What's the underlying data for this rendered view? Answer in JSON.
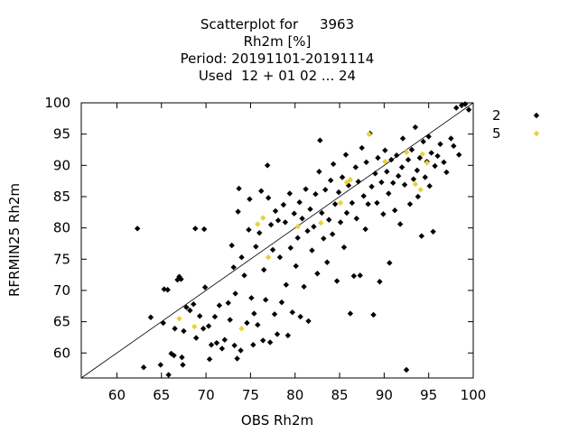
{
  "chart_data": {
    "type": "scatter",
    "title_lines": [
      "Scatterplot for     3963",
      "Rh2m [%]",
      "Period: 20191101-20191114",
      "Used  12 + 01 02 ... 24"
    ],
    "xlabel": "OBS Rh2m",
    "ylabel": "RFRMIN25 Rh2m",
    "xlim": [
      56,
      100
    ],
    "ylim": [
      56,
      100
    ],
    "xticks": [
      "60",
      "65",
      "70",
      "75",
      "80",
      "85",
      "90",
      "95",
      "100"
    ],
    "yticks": [
      "60",
      "65",
      "70",
      "75",
      "80",
      "85",
      "90",
      "95",
      "100"
    ],
    "diagonal": true,
    "grid": false,
    "legend_position": "right",
    "series": [
      {
        "name": "2",
        "color": "#000000",
        "marker": "diamond",
        "points": [
          [
            62.3,
            79.9
          ],
          [
            63.0,
            57.7
          ],
          [
            63.8,
            65.7
          ],
          [
            64.9,
            58.1
          ],
          [
            65.2,
            64.8
          ],
          [
            65.3,
            70.2
          ],
          [
            65.7,
            70.1
          ],
          [
            65.8,
            56.5
          ],
          [
            66.1,
            59.9
          ],
          [
            66.4,
            59.6
          ],
          [
            66.5,
            63.9
          ],
          [
            66.8,
            71.7
          ],
          [
            67.0,
            72.2
          ],
          [
            67.2,
            71.8
          ],
          [
            67.3,
            59.3
          ],
          [
            67.4,
            58.1
          ],
          [
            67.5,
            63.5
          ],
          [
            67.8,
            67.3
          ],
          [
            68.2,
            66.8
          ],
          [
            68.6,
            67.8
          ],
          [
            68.8,
            79.9
          ],
          [
            68.9,
            62.4
          ],
          [
            69.3,
            65.9
          ],
          [
            69.7,
            63.9
          ],
          [
            69.8,
            79.8
          ],
          [
            69.9,
            70.5
          ],
          [
            70.3,
            64.3
          ],
          [
            70.4,
            59.0
          ],
          [
            70.6,
            61.3
          ],
          [
            71.0,
            65.8
          ],
          [
            71.2,
            61.6
          ],
          [
            71.5,
            67.6
          ],
          [
            71.8,
            60.7
          ],
          [
            72.1,
            62.1
          ],
          [
            72.5,
            68.0
          ],
          [
            72.7,
            65.3
          ],
          [
            72.9,
            77.2
          ],
          [
            73.1,
            73.7
          ],
          [
            73.2,
            61.2
          ],
          [
            73.3,
            69.5
          ],
          [
            73.5,
            59.1
          ],
          [
            73.6,
            82.6
          ],
          [
            73.7,
            86.3
          ],
          [
            73.9,
            60.4
          ],
          [
            74.0,
            75.3
          ],
          [
            74.3,
            72.4
          ],
          [
            74.6,
            64.8
          ],
          [
            74.8,
            79.7
          ],
          [
            74.9,
            84.6
          ],
          [
            75.1,
            68.8
          ],
          [
            75.3,
            61.3
          ],
          [
            75.4,
            66.3
          ],
          [
            75.6,
            77.0
          ],
          [
            75.8,
            64.5
          ],
          [
            76.0,
            79.2
          ],
          [
            76.2,
            85.9
          ],
          [
            76.4,
            62.0
          ],
          [
            76.5,
            73.3
          ],
          [
            76.7,
            68.5
          ],
          [
            76.9,
            90.0
          ],
          [
            77.0,
            84.8
          ],
          [
            77.2,
            61.7
          ],
          [
            77.3,
            80.5
          ],
          [
            77.5,
            76.5
          ],
          [
            77.7,
            66.2
          ],
          [
            77.8,
            82.7
          ],
          [
            78.0,
            63.0
          ],
          [
            78.1,
            81.2
          ],
          [
            78.3,
            75.3
          ],
          [
            78.5,
            68.1
          ],
          [
            78.7,
            83.7
          ],
          [
            78.9,
            80.9
          ],
          [
            79.0,
            70.9
          ],
          [
            79.2,
            62.8
          ],
          [
            79.4,
            85.5
          ],
          [
            79.5,
            76.8
          ],
          [
            79.7,
            66.5
          ],
          [
            79.9,
            82.3
          ],
          [
            80.1,
            73.9
          ],
          [
            80.3,
            78.4
          ],
          [
            80.5,
            84.1
          ],
          [
            80.6,
            65.8
          ],
          [
            80.8,
            81.5
          ],
          [
            81.0,
            70.6
          ],
          [
            81.2,
            86.2
          ],
          [
            81.4,
            79.5
          ],
          [
            81.5,
            65.1
          ],
          [
            81.7,
            83.0
          ],
          [
            81.9,
            76.4
          ],
          [
            82.1,
            80.2
          ],
          [
            82.3,
            85.4
          ],
          [
            82.5,
            72.7
          ],
          [
            82.7,
            89.0
          ],
          [
            82.8,
            94.0
          ],
          [
            83.0,
            82.4
          ],
          [
            83.2,
            78.3
          ],
          [
            83.4,
            86.1
          ],
          [
            83.6,
            74.5
          ],
          [
            83.8,
            81.3
          ],
          [
            84.0,
            87.6
          ],
          [
            84.2,
            79.0
          ],
          [
            84.3,
            90.2
          ],
          [
            84.5,
            83.8
          ],
          [
            84.7,
            71.5
          ],
          [
            84.9,
            85.7
          ],
          [
            85.1,
            80.9
          ],
          [
            85.3,
            88.1
          ],
          [
            85.5,
            76.9
          ],
          [
            85.7,
            91.7
          ],
          [
            85.8,
            82.4
          ],
          [
            86.0,
            86.8
          ],
          [
            86.2,
            66.3
          ],
          [
            86.4,
            84.0
          ],
          [
            86.6,
            72.3
          ],
          [
            86.8,
            89.7
          ],
          [
            86.9,
            81.5
          ],
          [
            87.1,
            87.4
          ],
          [
            87.3,
            72.4
          ],
          [
            87.5,
            92.8
          ],
          [
            87.7,
            85.1
          ],
          [
            87.9,
            79.8
          ],
          [
            88.0,
            90.5
          ],
          [
            88.2,
            83.8
          ],
          [
            88.4,
            95.1
          ],
          [
            88.6,
            86.6
          ],
          [
            88.8,
            66.1
          ],
          [
            89.0,
            88.7
          ],
          [
            89.2,
            84.0
          ],
          [
            89.3,
            91.2
          ],
          [
            89.5,
            71.4
          ],
          [
            89.7,
            87.3
          ],
          [
            89.9,
            82.2
          ],
          [
            90.1,
            92.4
          ],
          [
            90.3,
            89.0
          ],
          [
            90.5,
            85.5
          ],
          [
            90.6,
            74.4
          ],
          [
            90.8,
            90.9
          ],
          [
            91.0,
            87.2
          ],
          [
            91.2,
            82.8
          ],
          [
            91.4,
            91.6
          ],
          [
            91.6,
            88.3
          ],
          [
            91.8,
            80.6
          ],
          [
            92.0,
            89.7
          ],
          [
            92.1,
            94.3
          ],
          [
            92.3,
            86.9
          ],
          [
            92.5,
            57.3
          ],
          [
            92.7,
            90.9
          ],
          [
            92.9,
            83.8
          ],
          [
            93.1,
            92.5
          ],
          [
            93.3,
            87.8
          ],
          [
            93.5,
            96.1
          ],
          [
            93.7,
            89.2
          ],
          [
            93.8,
            85.0
          ],
          [
            94.0,
            91.2
          ],
          [
            94.2,
            78.7
          ],
          [
            94.4,
            93.8
          ],
          [
            94.6,
            88.1
          ],
          [
            94.8,
            90.6
          ],
          [
            95.0,
            94.6
          ],
          [
            95.1,
            86.7
          ],
          [
            95.3,
            92.0
          ],
          [
            95.5,
            79.4
          ],
          [
            95.7,
            89.9
          ],
          [
            96.0,
            91.5
          ],
          [
            96.3,
            93.4
          ],
          [
            96.7,
            90.5
          ],
          [
            97.0,
            88.9
          ],
          [
            97.5,
            94.3
          ],
          [
            97.8,
            93.1
          ],
          [
            98.1,
            99.2
          ],
          [
            98.4,
            91.7
          ],
          [
            98.7,
            99.6
          ],
          [
            99.1,
            99.8
          ],
          [
            99.5,
            98.9
          ]
        ]
      },
      {
        "name": "5",
        "color": "#e8d23a",
        "marker": "diamond",
        "points": [
          [
            67.0,
            65.5
          ],
          [
            68.7,
            64.2
          ],
          [
            74.0,
            63.9
          ],
          [
            75.8,
            80.6
          ],
          [
            76.4,
            81.6
          ],
          [
            77.0,
            75.3
          ],
          [
            80.3,
            80.2
          ],
          [
            82.9,
            80.8
          ],
          [
            85.1,
            84.0
          ],
          [
            85.8,
            87.3
          ],
          [
            86.2,
            87.7
          ],
          [
            88.3,
            95.0
          ],
          [
            90.1,
            90.6
          ],
          [
            92.5,
            92.1
          ],
          [
            93.5,
            87.0
          ],
          [
            94.1,
            86.1
          ],
          [
            94.3,
            91.8
          ],
          [
            94.8,
            90.4
          ]
        ]
      }
    ]
  }
}
